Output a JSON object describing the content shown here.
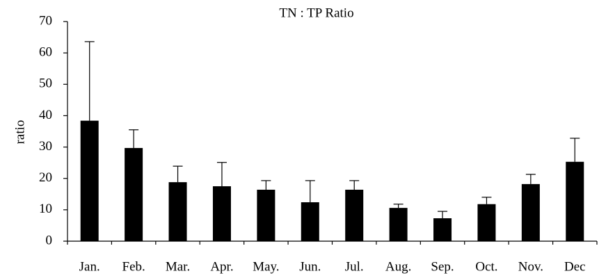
{
  "chart_data": {
    "type": "bar",
    "title": "TN : TP  Ratio",
    "y_label": "ratio",
    "categories": [
      "Jan.",
      "Feb.",
      "Mar.",
      "Apr.",
      "May.",
      "Jun.",
      "Jul.",
      "Aug.",
      "Sep.",
      "Oct.",
      "Nov.",
      "Dec"
    ],
    "values": [
      38.4,
      29.7,
      18.8,
      17.5,
      16.4,
      12.4,
      16.4,
      10.6,
      7.3,
      11.8,
      18.2,
      25.3
    ],
    "errors": [
      25.2,
      5.8,
      5.1,
      7.6,
      2.9,
      6.9,
      2.9,
      1.2,
      2.2,
      2.2,
      3.1,
      7.5
    ],
    "color": "#000000",
    "ylim": [
      0,
      70
    ],
    "yticks": [
      0,
      10,
      20,
      30,
      40,
      50,
      60,
      70
    ],
    "grid": false
  }
}
